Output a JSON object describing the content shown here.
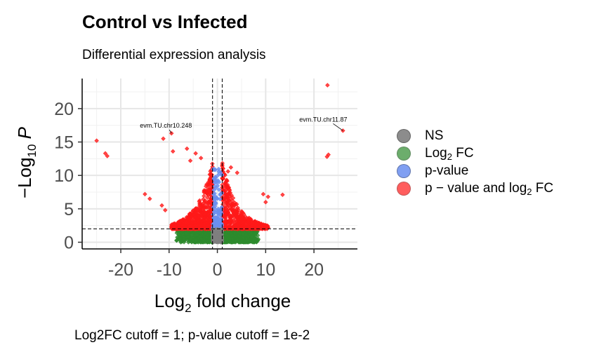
{
  "chart_data": {
    "type": "scatter",
    "title": "Control vs Infected",
    "subtitle": "Differential expression analysis",
    "caption": "Log2FC cutoff = 1; p-value cutoff = 1e-2",
    "xlabel": {
      "prefix": "Log",
      "sub": "2",
      "suffix": " fold change"
    },
    "ylabel": {
      "prefix": "−Log",
      "sub": "10",
      "suffix": " P"
    },
    "xlim": [
      -28,
      29
    ],
    "ylim": [
      -1,
      24.5
    ],
    "xticks": [
      -20,
      -10,
      0,
      10,
      20
    ],
    "yticks": [
      0,
      5,
      10,
      15,
      20
    ],
    "grid": true,
    "legend_position": "right",
    "cutoffs": {
      "log2fc": 1,
      "neg_log10_p": 2
    },
    "series": [
      {
        "name": "NS",
        "label_main": "NS",
        "color": "#808080",
        "summary": "dense cluster for |log2FC| < 1 and -log10 P < 2",
        "cluster": {
          "xmin": -1,
          "xmax": 1,
          "ymin": 0,
          "ymax": 2
        }
      },
      {
        "name": "Log2 FC",
        "label_main": "Log",
        "label_sub": "2",
        "label_tail": " FC",
        "color": "#2e8b2e",
        "summary": "dense band for |log2FC| >= 1 and -log10 P < 2",
        "cluster": {
          "xmin": -9,
          "xmax": 9,
          "ymin": 0,
          "ymax": 2
        }
      },
      {
        "name": "p-value",
        "label_main": "p-value",
        "color": "#6b8ff0",
        "summary": "narrow column for |log2FC| < 1 and -log10 P >= 2",
        "cluster": {
          "xmin": -1,
          "xmax": 1,
          "ymin": 2,
          "ymax": 12
        }
      },
      {
        "name": "p - value and log2 FC",
        "label_main": "p − value and log",
        "label_sub": "2",
        "label_tail": " FC",
        "color": "#ff1a1a",
        "summary": "dense clusters on both sides for |log2FC| >= 1 and -log10 P >= 2",
        "cluster": {
          "xmin": -11,
          "xmax": 11,
          "ymin": 2,
          "ymax": 14
        },
        "outliers": [
          {
            "x": -25,
            "y": 15.2
          },
          {
            "x": -23.2,
            "y": 13.3
          },
          {
            "x": -22.8,
            "y": 12.9
          },
          {
            "x": -11.2,
            "y": 15.5
          },
          {
            "x": -9.5,
            "y": 16.3
          },
          {
            "x": -9.2,
            "y": 13.6
          },
          {
            "x": -15,
            "y": 7.2
          },
          {
            "x": -14,
            "y": 6.5
          },
          {
            "x": -11.5,
            "y": 5.5
          },
          {
            "x": -10.8,
            "y": 4.8
          },
          {
            "x": -6.3,
            "y": 14.0
          },
          {
            "x": -4.5,
            "y": 13.3
          },
          {
            "x": -3.4,
            "y": 12.6
          },
          {
            "x": -5.6,
            "y": 12.2
          },
          {
            "x": 2.8,
            "y": 11.2
          },
          {
            "x": 2.2,
            "y": 10.6
          },
          {
            "x": 4.1,
            "y": 10.4
          },
          {
            "x": 9.5,
            "y": 7.2
          },
          {
            "x": 10.5,
            "y": 6.8
          },
          {
            "x": 13.5,
            "y": 7.1
          },
          {
            "x": 10,
            "y": 6.0
          },
          {
            "x": 22.8,
            "y": 23.5
          },
          {
            "x": 26,
            "y": 16.7
          },
          {
            "x": 23,
            "y": 13.1
          },
          {
            "x": 22.7,
            "y": 12.8
          }
        ]
      }
    ],
    "annotations": [
      {
        "text": "evm.TU.chr10.248",
        "x": -9.5,
        "y": 16.3
      },
      {
        "text": "evm.TU.chr11.87",
        "x": 26,
        "y": 16.7
      }
    ]
  }
}
